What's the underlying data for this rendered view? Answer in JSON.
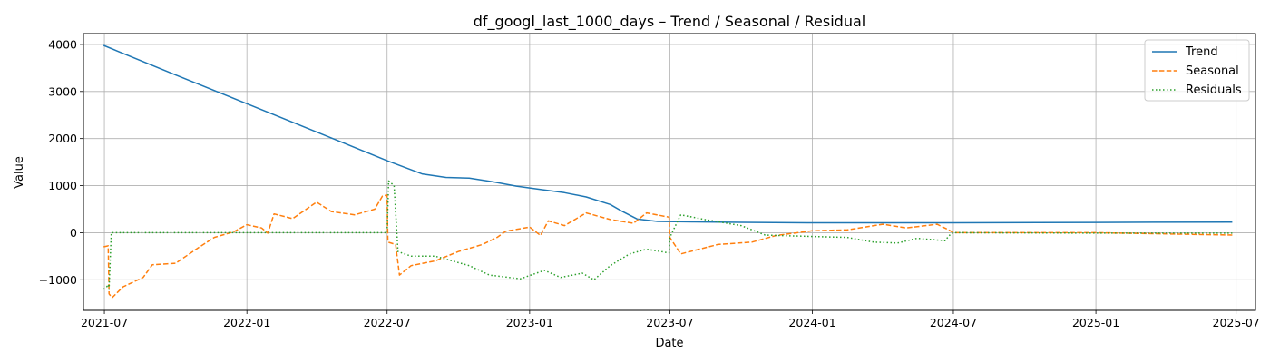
{
  "chart_data": {
    "type": "line",
    "title": "df_googl_last_1000_days – Trend / Seasonal / Residual",
    "xlabel": "Date",
    "ylabel": "Value",
    "xlim": [
      "2021-06-04",
      "2025-07-26"
    ],
    "ylim": [
      -1650,
      4230
    ],
    "x_ticks": [
      "2021-07",
      "2022-01",
      "2022-07",
      "2023-01",
      "2023-07",
      "2024-01",
      "2024-07",
      "2025-01",
      "2025-07"
    ],
    "y_ticks": [
      -1000,
      0,
      1000,
      2000,
      3000,
      4000
    ],
    "y_tick_labels": [
      "−1000",
      "0",
      "1000",
      "2000",
      "3000",
      "4000"
    ],
    "grid": true,
    "legend_position": "top-right",
    "series": [
      {
        "name": "Trend",
        "color": "#1f77b4",
        "style": "solid",
        "points": [
          [
            "2021-06-30",
            3980
          ],
          [
            "2021-10-01",
            3350
          ],
          [
            "2022-01-01",
            2740
          ],
          [
            "2022-04-01",
            2140
          ],
          [
            "2022-07-01",
            1530
          ],
          [
            "2022-08-15",
            1250
          ],
          [
            "2022-09-15",
            1175
          ],
          [
            "2022-10-15",
            1160
          ],
          [
            "2022-11-15",
            1080
          ],
          [
            "2022-12-15",
            990
          ],
          [
            "2023-01-15",
            920
          ],
          [
            "2023-02-15",
            850
          ],
          [
            "2023-03-15",
            760
          ],
          [
            "2023-04-15",
            600
          ],
          [
            "2023-05-01",
            450
          ],
          [
            "2023-05-20",
            290
          ],
          [
            "2023-06-15",
            240
          ],
          [
            "2023-08-01",
            230
          ],
          [
            "2023-10-01",
            220
          ],
          [
            "2024-01-01",
            210
          ],
          [
            "2024-07-01",
            210
          ],
          [
            "2025-01-01",
            218
          ],
          [
            "2025-06-26",
            225
          ]
        ]
      },
      {
        "name": "Seasonal",
        "color": "#ff7f0e",
        "style": "dashed",
        "points": [
          [
            "2021-06-30",
            -300
          ],
          [
            "2021-07-06",
            -280
          ],
          [
            "2021-07-07",
            -1300
          ],
          [
            "2021-07-11",
            -1380
          ],
          [
            "2021-07-25",
            -1150
          ],
          [
            "2021-08-20",
            -950
          ],
          [
            "2021-09-01",
            -680
          ],
          [
            "2021-10-01",
            -650
          ],
          [
            "2021-11-01",
            -300
          ],
          [
            "2021-11-20",
            -100
          ],
          [
            "2021-12-15",
            20
          ],
          [
            "2022-01-01",
            170
          ],
          [
            "2022-01-20",
            100
          ],
          [
            "2022-01-28",
            -10
          ],
          [
            "2022-02-05",
            400
          ],
          [
            "2022-03-01",
            300
          ],
          [
            "2022-04-01",
            650
          ],
          [
            "2022-04-20",
            450
          ],
          [
            "2022-05-20",
            380
          ],
          [
            "2022-06-15",
            500
          ],
          [
            "2022-06-25",
            780
          ],
          [
            "2022-07-01",
            800
          ],
          [
            "2022-07-02",
            -200
          ],
          [
            "2022-07-12",
            -250
          ],
          [
            "2022-07-17",
            -900
          ],
          [
            "2022-08-01",
            -700
          ],
          [
            "2022-09-01",
            -600
          ],
          [
            "2022-10-01",
            -400
          ],
          [
            "2022-11-01",
            -250
          ],
          [
            "2022-11-20",
            -100
          ],
          [
            "2022-12-01",
            30
          ],
          [
            "2023-01-01",
            120
          ],
          [
            "2023-01-15",
            -60
          ],
          [
            "2023-01-25",
            250
          ],
          [
            "2023-02-15",
            150
          ],
          [
            "2023-03-15",
            420
          ],
          [
            "2023-04-15",
            280
          ],
          [
            "2023-05-15",
            200
          ],
          [
            "2023-06-01",
            420
          ],
          [
            "2023-06-30",
            330
          ],
          [
            "2023-07-01",
            -100
          ],
          [
            "2023-07-15",
            -450
          ],
          [
            "2023-09-01",
            -250
          ],
          [
            "2023-10-15",
            -200
          ],
          [
            "2023-11-15",
            -60
          ],
          [
            "2024-01-01",
            40
          ],
          [
            "2024-02-15",
            60
          ],
          [
            "2024-04-01",
            180
          ],
          [
            "2024-05-01",
            100
          ],
          [
            "2024-06-10",
            180
          ],
          [
            "2024-06-25",
            60
          ],
          [
            "2024-07-01",
            0
          ],
          [
            "2025-01-01",
            0
          ],
          [
            "2025-06-26",
            -50
          ]
        ]
      },
      {
        "name": "Residuals",
        "color": "#2ca02c",
        "style": "dotted",
        "points": [
          [
            "2021-06-30",
            -1200
          ],
          [
            "2021-07-04",
            -1150
          ],
          [
            "2021-07-06",
            -1100
          ],
          [
            "2021-07-07",
            -1200
          ],
          [
            "2021-07-10",
            0
          ],
          [
            "2021-10-01",
            0
          ],
          [
            "2022-07-01",
            0
          ],
          [
            "2022-07-03",
            1100
          ],
          [
            "2022-07-10",
            1000
          ],
          [
            "2022-07-15",
            -400
          ],
          [
            "2022-08-01",
            -500
          ],
          [
            "2022-09-01",
            -500
          ],
          [
            "2022-10-15",
            -700
          ],
          [
            "2022-11-10",
            -900
          ],
          [
            "2022-12-20",
            -980
          ],
          [
            "2023-01-20",
            -800
          ],
          [
            "2023-02-10",
            -950
          ],
          [
            "2023-03-10",
            -860
          ],
          [
            "2023-03-25",
            -1000
          ],
          [
            "2023-04-15",
            -700
          ],
          [
            "2023-05-10",
            -450
          ],
          [
            "2023-06-01",
            -350
          ],
          [
            "2023-06-30",
            -430
          ],
          [
            "2023-07-01",
            -100
          ],
          [
            "2023-07-15",
            380
          ],
          [
            "2023-08-15",
            280
          ],
          [
            "2023-10-01",
            150
          ],
          [
            "2023-11-01",
            -50
          ],
          [
            "2024-01-01",
            -80
          ],
          [
            "2024-02-15",
            -100
          ],
          [
            "2024-03-20",
            -200
          ],
          [
            "2024-04-20",
            -220
          ],
          [
            "2024-05-15",
            -120
          ],
          [
            "2024-06-20",
            -170
          ],
          [
            "2024-06-28",
            -20
          ],
          [
            "2024-07-01",
            0
          ],
          [
            "2025-01-01",
            -10
          ],
          [
            "2025-06-26",
            -10
          ]
        ]
      }
    ]
  }
}
